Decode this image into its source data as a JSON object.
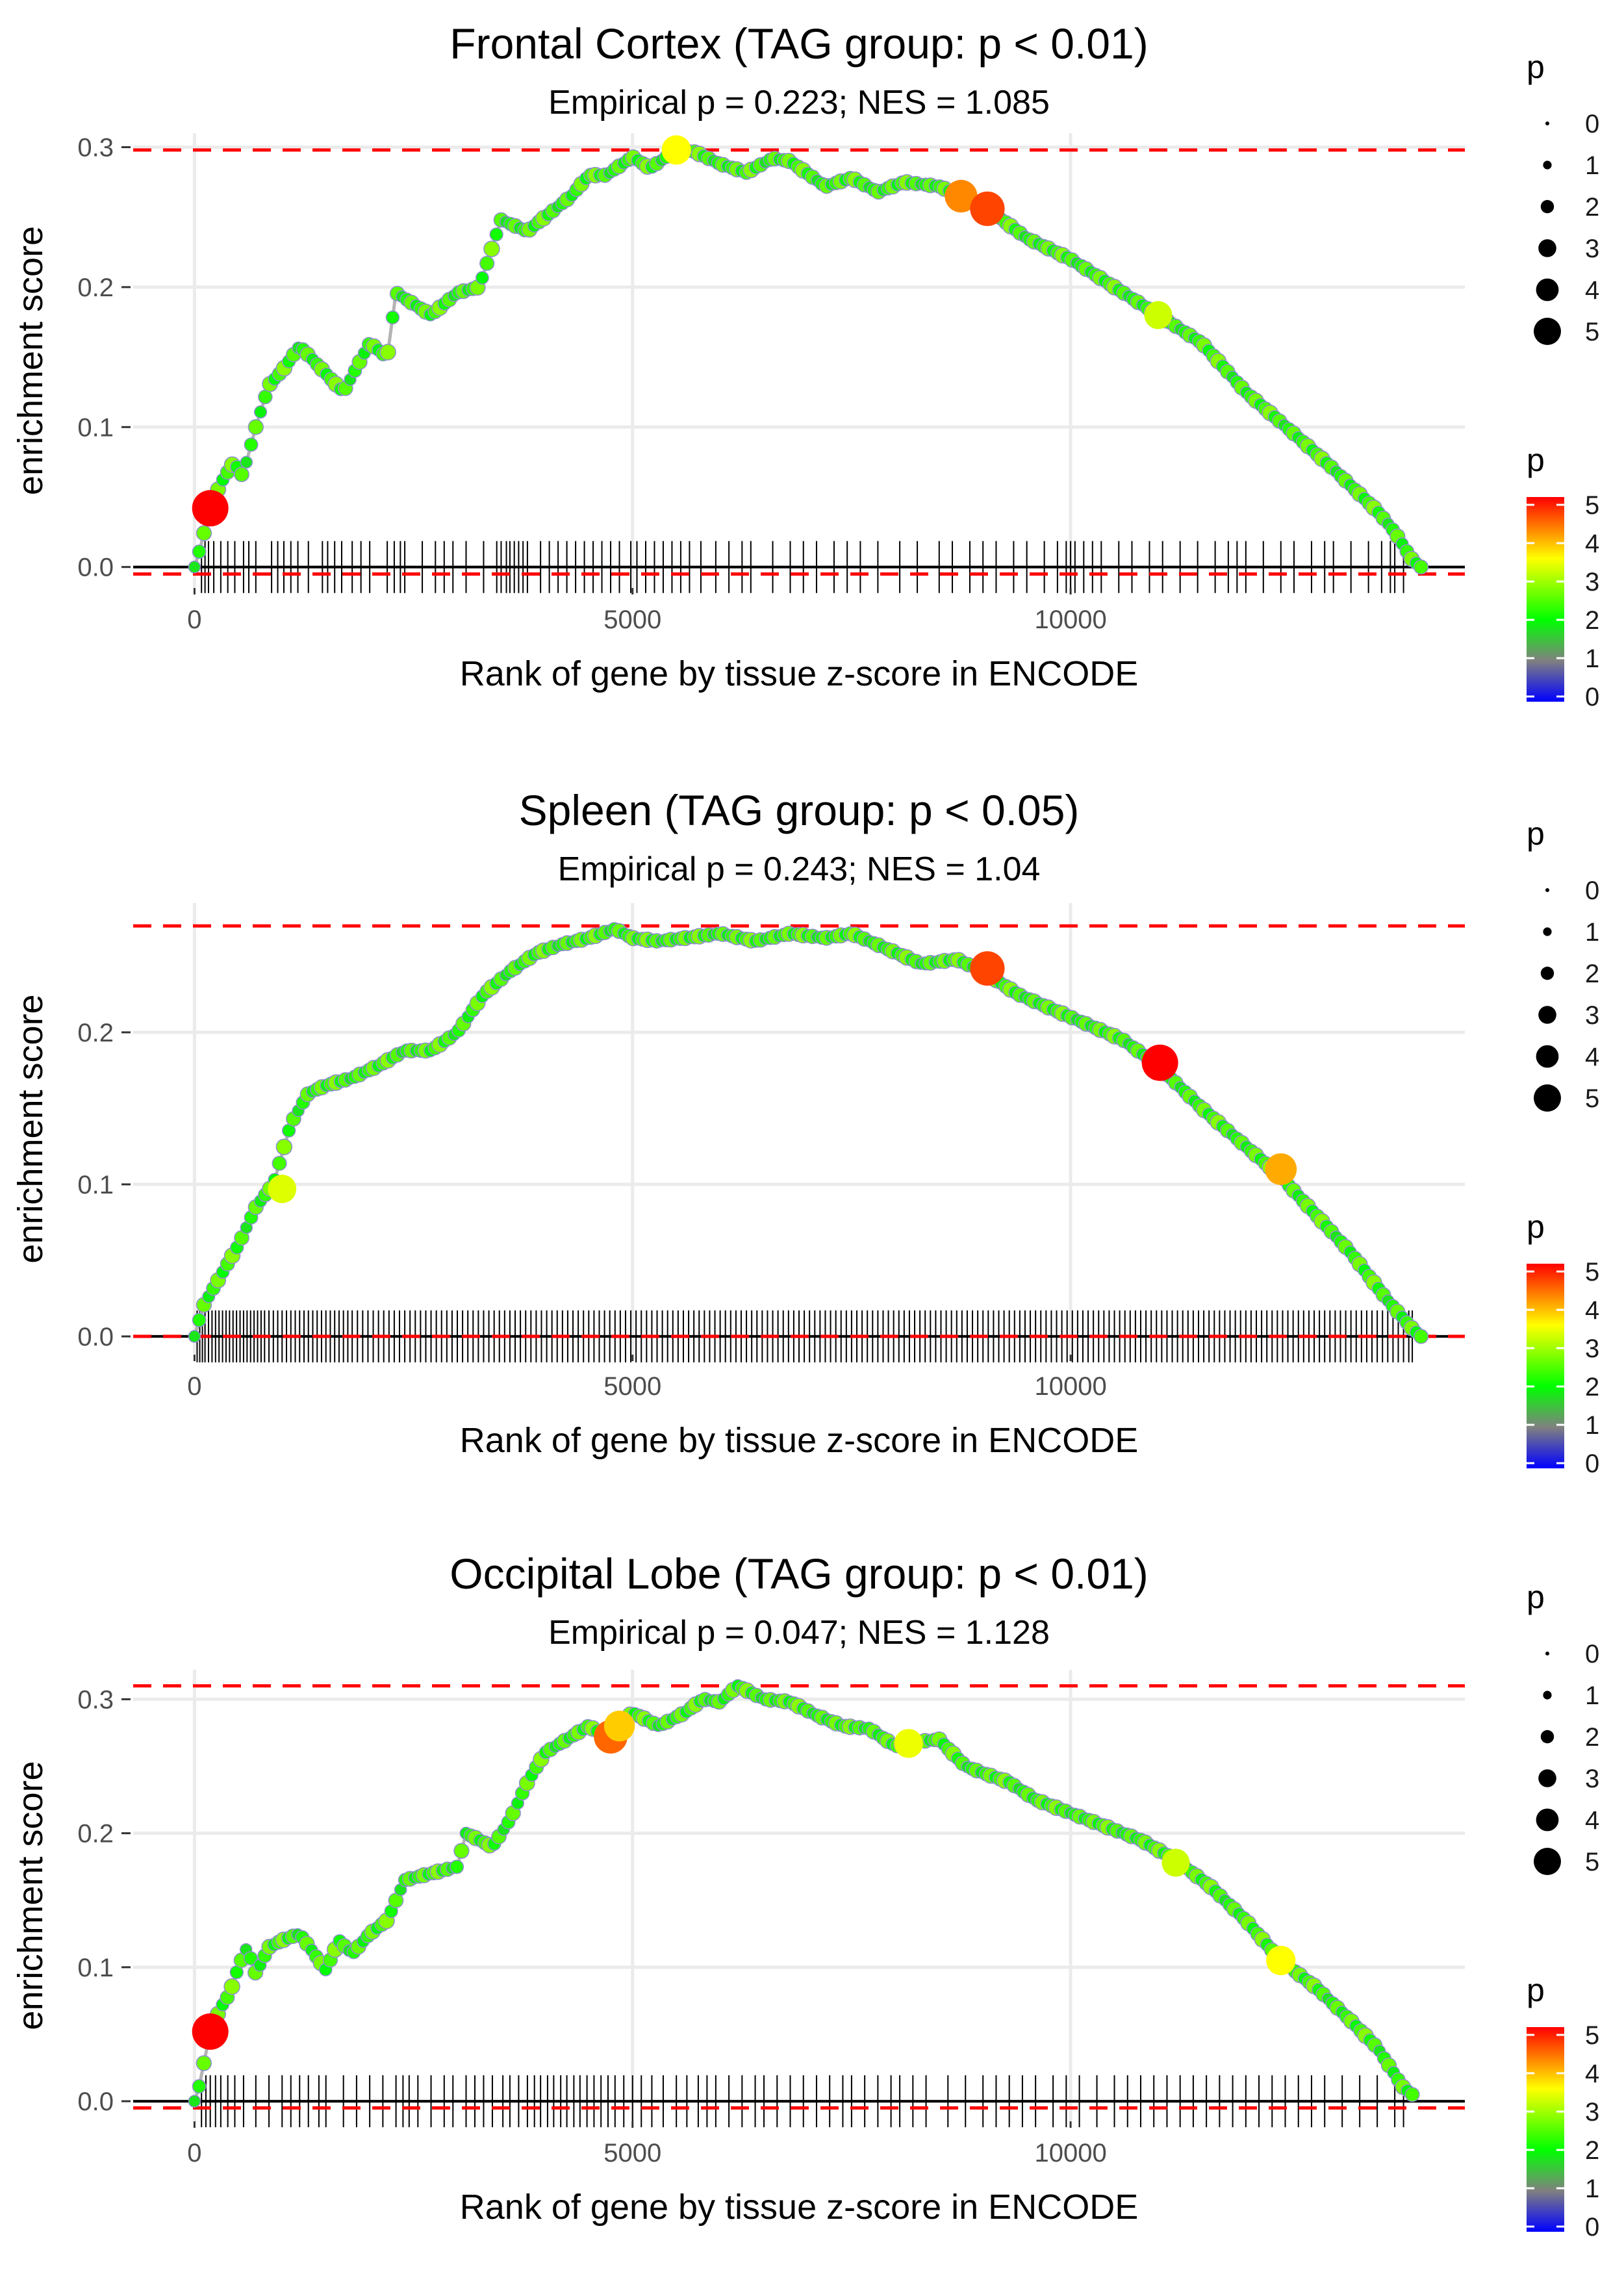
{
  "chart_data": [
    {
      "type": "line",
      "title": "Frontal Cortex (TAG group: p < 0.01)",
      "subtitle": "Empirical p = 0.223; NES = 1.085",
      "xlabel": "Rank of gene by tissue z-score in ENCODE",
      "ylabel": "enrichment score",
      "xlim": [
        -700,
        14500
      ],
      "ylim": [
        -0.015,
        0.31
      ],
      "xticks": [
        0,
        5000,
        10000
      ],
      "xtick_labels": [
        "0",
        "5000",
        "10000"
      ],
      "yticks": [
        0,
        0.1,
        0.2,
        0.3
      ],
      "ytick_labels": [
        "0.0",
        "0.1",
        "0.2",
        "0.3"
      ],
      "max_es": 0.298,
      "min_es": -0.005,
      "curve": [
        [
          0,
          0
        ],
        [
          50,
          0.01
        ],
        [
          180,
          0.042
        ],
        [
          300,
          0.06
        ],
        [
          450,
          0.075
        ],
        [
          550,
          0.065
        ],
        [
          700,
          0.1
        ],
        [
          850,
          0.13
        ],
        [
          1000,
          0.14
        ],
        [
          1200,
          0.158
        ],
        [
          1700,
          0.125
        ],
        [
          2000,
          0.16
        ],
        [
          2200,
          0.15
        ],
        [
          2300,
          0.196
        ],
        [
          2700,
          0.18
        ],
        [
          3000,
          0.196
        ],
        [
          3250,
          0.2
        ],
        [
          3500,
          0.248
        ],
        [
          3800,
          0.24
        ],
        [
          4000,
          0.25
        ],
        [
          4300,
          0.265
        ],
        [
          4500,
          0.28
        ],
        [
          4700,
          0.28
        ],
        [
          5000,
          0.293
        ],
        [
          5200,
          0.285
        ],
        [
          5500,
          0.298
        ],
        [
          5700,
          0.297
        ],
        [
          6000,
          0.288
        ],
        [
          6300,
          0.282
        ],
        [
          6600,
          0.292
        ],
        [
          6800,
          0.29
        ],
        [
          7200,
          0.272
        ],
        [
          7500,
          0.278
        ],
        [
          7800,
          0.268
        ],
        [
          8100,
          0.275
        ],
        [
          8500,
          0.272
        ],
        [
          8750,
          0.265
        ],
        [
          9050,
          0.256
        ],
        [
          9500,
          0.235
        ],
        [
          9800,
          0.226
        ],
        [
          10000,
          0.22
        ],
        [
          10500,
          0.2
        ],
        [
          11000,
          0.18
        ],
        [
          11500,
          0.16
        ],
        [
          12000,
          0.125
        ],
        [
          12500,
          0.098
        ],
        [
          13000,
          0.07
        ],
        [
          13500,
          0.04
        ],
        [
          13700,
          0.025
        ],
        [
          13900,
          0.005
        ],
        [
          14000,
          0
        ]
      ],
      "highlight_points": [
        {
          "x": 180,
          "y": 0.042,
          "p": 5
        },
        {
          "x": 8750,
          "y": 0.265,
          "p": 4.2
        },
        {
          "x": 9050,
          "y": 0.256,
          "p": 4.6
        },
        {
          "x": 5500,
          "y": 0.298,
          "p": 3.5
        },
        {
          "x": 11000,
          "y": 0.18,
          "p": 3.2
        }
      ],
      "gene_ranks": [
        80,
        120,
        160,
        220,
        300,
        380,
        460,
        560,
        620,
        700,
        880,
        950,
        1020,
        1100,
        1180,
        1300,
        1460,
        1520,
        1600,
        1680,
        1800,
        1900,
        2000,
        2200,
        2280,
        2350,
        2400,
        2600,
        2750,
        2850,
        2950,
        3100,
        3300,
        3450,
        3500,
        3560,
        3600,
        3650,
        3700,
        3750,
        3800,
        3950,
        4050,
        4150,
        4250,
        4350,
        4450,
        4550,
        4650,
        4750,
        4850,
        4980,
        5050,
        5150,
        5250,
        5350,
        5450,
        5550,
        5650,
        5780,
        5950,
        6100,
        6250,
        6350,
        6600,
        6800,
        6950,
        7100,
        7300,
        7450,
        7600,
        7800,
        8050,
        8250,
        8500,
        8650,
        8850,
        9000,
        9150,
        9350,
        9500,
        9700,
        9850,
        9950,
        10000,
        10050,
        10150,
        10250,
        10350,
        10550,
        10700,
        10900,
        11050,
        11250,
        11450,
        11650,
        11800,
        11900,
        12000,
        12200,
        12400,
        12550,
        12750,
        12900,
        13000,
        13200,
        13400,
        13550,
        13650,
        13700,
        13800
      ],
      "legend_size_title": "p",
      "legend_size_labels": [
        "0",
        "1",
        "2",
        "3",
        "4",
        "5"
      ],
      "legend_color_title": "p",
      "legend_color_labels": [
        "5",
        "4",
        "3",
        "2",
        "1",
        "0"
      ]
    },
    {
      "type": "line",
      "title": "Spleen (TAG group: p < 0.05)",
      "subtitle": "Empirical p = 0.243; NES = 1.04",
      "xlabel": "Rank of gene by tissue z-score in ENCODE",
      "ylabel": "enrichment score",
      "xlim": [
        -700,
        14500
      ],
      "ylim": [
        -0.012,
        0.285
      ],
      "xticks": [
        0,
        5000,
        10000
      ],
      "xtick_labels": [
        "0",
        "5000",
        "10000"
      ],
      "yticks": [
        0,
        0.1,
        0.2
      ],
      "ytick_labels": [
        "0.0",
        "0.1",
        "0.2"
      ],
      "max_es": 0.27,
      "min_es": 0,
      "curve": [
        [
          0,
          0
        ],
        [
          100,
          0.02
        ],
        [
          300,
          0.04
        ],
        [
          500,
          0.06
        ],
        [
          700,
          0.085
        ],
        [
          900,
          0.1
        ],
        [
          1100,
          0.14
        ],
        [
          1300,
          0.16
        ],
        [
          1500,
          0.165
        ],
        [
          1800,
          0.17
        ],
        [
          2100,
          0.178
        ],
        [
          2400,
          0.188
        ],
        [
          2700,
          0.188
        ],
        [
          3000,
          0.2
        ],
        [
          3300,
          0.225
        ],
        [
          3600,
          0.24
        ],
        [
          3900,
          0.252
        ],
        [
          4200,
          0.258
        ],
        [
          4500,
          0.262
        ],
        [
          4800,
          0.268
        ],
        [
          5000,
          0.262
        ],
        [
          5300,
          0.26
        ],
        [
          5600,
          0.262
        ],
        [
          6000,
          0.265
        ],
        [
          6400,
          0.26
        ],
        [
          6800,
          0.265
        ],
        [
          7200,
          0.262
        ],
        [
          7500,
          0.265
        ],
        [
          7900,
          0.255
        ],
        [
          8300,
          0.245
        ],
        [
          8700,
          0.248
        ],
        [
          9000,
          0.24
        ],
        [
          9400,
          0.225
        ],
        [
          9800,
          0.215
        ],
        [
          10200,
          0.205
        ],
        [
          10600,
          0.195
        ],
        [
          11000,
          0.178
        ],
        [
          11500,
          0.15
        ],
        [
          12000,
          0.125
        ],
        [
          12400,
          0.105
        ],
        [
          12800,
          0.08
        ],
        [
          13200,
          0.055
        ],
        [
          13600,
          0.025
        ],
        [
          13900,
          0.005
        ],
        [
          14000,
          0
        ]
      ],
      "highlight_points": [
        {
          "x": 9050,
          "y": 0.242,
          "p": 4.6
        },
        {
          "x": 11020,
          "y": 0.18,
          "p": 5
        },
        {
          "x": 12400,
          "y": 0.11,
          "p": 4.0
        },
        {
          "x": 1000,
          "y": 0.097,
          "p": 3.3
        }
      ],
      "gene_ranks": [
        30,
        60,
        90,
        120,
        160,
        200,
        240,
        280,
        320,
        360,
        400,
        440,
        480,
        520,
        560,
        600,
        640,
        680,
        720,
        760,
        800,
        850,
        900,
        950,
        1000,
        1050,
        1100,
        1150,
        1200,
        1250,
        1300,
        1350,
        1400,
        1450,
        1500,
        1550,
        1600,
        1650,
        1700,
        1750,
        1800,
        1860,
        1920,
        1980,
        2040,
        2100,
        2160,
        2220,
        2280,
        2340,
        2400,
        2460,
        2520,
        2580,
        2640,
        2700,
        2760,
        2820,
        2880,
        2940,
        3000,
        3060,
        3120,
        3180,
        3240,
        3300,
        3360,
        3420,
        3480,
        3540,
        3600,
        3660,
        3720,
        3780,
        3840,
        3900,
        3960,
        4020,
        4080,
        4140,
        4200,
        4260,
        4320,
        4380,
        4440,
        4500,
        4560,
        4620,
        4680,
        4740,
        4800,
        4860,
        4920,
        4980,
        5040,
        5100,
        5160,
        5220,
        5280,
        5340,
        5400,
        5460,
        5520,
        5580,
        5640,
        5700,
        5760,
        5820,
        5880,
        5940,
        6000,
        6060,
        6120,
        6180,
        6240,
        6300,
        6360,
        6420,
        6480,
        6540,
        6600,
        6660,
        6720,
        6780,
        6840,
        6900,
        6960,
        7020,
        7080,
        7140,
        7200,
        7260,
        7320,
        7380,
        7440,
        7500,
        7560,
        7620,
        7680,
        7740,
        7800,
        7860,
        7920,
        7980,
        8040,
        8100,
        8160,
        8220,
        8280,
        8340,
        8400,
        8460,
        8520,
        8580,
        8640,
        8700,
        8760,
        8820,
        8880,
        8940,
        9000,
        9060,
        9120,
        9180,
        9240,
        9300,
        9360,
        9420,
        9480,
        9540,
        9600,
        9660,
        9720,
        9780,
        9840,
        9900,
        9960,
        10020,
        10080,
        10140,
        10200,
        10260,
        10320,
        10380,
        10440,
        10500,
        10560,
        10620,
        10680,
        10740,
        10800,
        10860,
        10920,
        10980,
        11040,
        11100,
        11160,
        11220,
        11280,
        11340,
        11400,
        11460,
        11520,
        11580,
        11640,
        11700,
        11760,
        11820,
        11880,
        11940,
        12000,
        12060,
        12120,
        12180,
        12240,
        12300,
        12360,
        12420,
        12480,
        12540,
        12600,
        12660,
        12720,
        12780,
        12840,
        12900,
        12960,
        13020,
        13080,
        13140,
        13200,
        13260,
        13320,
        13380,
        13440,
        13500,
        13560,
        13620,
        13680,
        13740,
        13800,
        13860,
        13900
      ],
      "legend_size_title": "p",
      "legend_size_labels": [
        "0",
        "1",
        "2",
        "3",
        "4",
        "5"
      ],
      "legend_color_title": "p",
      "legend_color_labels": [
        "5",
        "4",
        "3",
        "2",
        "1",
        "0"
      ]
    },
    {
      "type": "line",
      "title": "Occipital Lobe (TAG group: p < 0.01)",
      "subtitle": "Empirical p = 0.047; NES = 1.128",
      "xlabel": "Rank of gene by tissue z-score in ENCODE",
      "ylabel": "enrichment score",
      "xlim": [
        -700,
        14500
      ],
      "ylim": [
        -0.015,
        0.322
      ],
      "xticks": [
        0,
        5000,
        10000
      ],
      "xtick_labels": [
        "0",
        "5000",
        "10000"
      ],
      "yticks": [
        0,
        0.1,
        0.2,
        0.3
      ],
      "ytick_labels": [
        "0.0",
        "0.1",
        "0.2",
        "0.3"
      ],
      "max_es": 0.31,
      "min_es": -0.005,
      "curve": [
        [
          0,
          0
        ],
        [
          50,
          0.01
        ],
        [
          180,
          0.052
        ],
        [
          300,
          0.07
        ],
        [
          400,
          0.08
        ],
        [
          500,
          0.1
        ],
        [
          600,
          0.115
        ],
        [
          700,
          0.095
        ],
        [
          850,
          0.115
        ],
        [
          1000,
          0.12
        ],
        [
          1200,
          0.125
        ],
        [
          1500,
          0.098
        ],
        [
          1650,
          0.12
        ],
        [
          1800,
          0.11
        ],
        [
          2000,
          0.125
        ],
        [
          2200,
          0.135
        ],
        [
          2400,
          0.165
        ],
        [
          2700,
          0.17
        ],
        [
          3000,
          0.175
        ],
        [
          3100,
          0.2
        ],
        [
          3400,
          0.19
        ],
        [
          3600,
          0.21
        ],
        [
          3800,
          0.238
        ],
        [
          4000,
          0.26
        ],
        [
          4200,
          0.268
        ],
        [
          4500,
          0.28
        ],
        [
          4700,
          0.272
        ],
        [
          4800,
          0.28
        ],
        [
          5000,
          0.29
        ],
        [
          5300,
          0.28
        ],
        [
          5600,
          0.29
        ],
        [
          5800,
          0.3
        ],
        [
          6000,
          0.298
        ],
        [
          6200,
          0.31
        ],
        [
          6500,
          0.3
        ],
        [
          6800,
          0.298
        ],
        [
          7100,
          0.288
        ],
        [
          7400,
          0.28
        ],
        [
          7700,
          0.278
        ],
        [
          8000,
          0.265
        ],
        [
          8200,
          0.268
        ],
        [
          8500,
          0.27
        ],
        [
          8800,
          0.25
        ],
        [
          9000,
          0.245
        ],
        [
          9300,
          0.238
        ],
        [
          9600,
          0.225
        ],
        [
          10000,
          0.215
        ],
        [
          10400,
          0.205
        ],
        [
          10800,
          0.195
        ],
        [
          11200,
          0.18
        ],
        [
          11600,
          0.16
        ],
        [
          12000,
          0.135
        ],
        [
          12400,
          0.105
        ],
        [
          12800,
          0.085
        ],
        [
          13200,
          0.06
        ],
        [
          13500,
          0.04
        ],
        [
          13800,
          0.01
        ],
        [
          13900,
          0.005
        ]
      ],
      "highlight_points": [
        {
          "x": 180,
          "y": 0.052,
          "p": 5
        },
        {
          "x": 4750,
          "y": 0.272,
          "p": 4.4
        },
        {
          "x": 4850,
          "y": 0.28,
          "p": 3.8
        },
        {
          "x": 8150,
          "y": 0.267,
          "p": 3.4
        },
        {
          "x": 12400,
          "y": 0.105,
          "p": 3.5
        },
        {
          "x": 11200,
          "y": 0.178,
          "p": 3.2
        }
      ],
      "gene_ranks": [
        80,
        130,
        180,
        240,
        300,
        380,
        460,
        560,
        700,
        850,
        1000,
        1100,
        1200,
        1300,
        1420,
        1500,
        1700,
        1850,
        2000,
        2150,
        2300,
        2380,
        2450,
        2550,
        2700,
        2850,
        2950,
        3100,
        3200,
        3300,
        3400,
        3520,
        3600,
        3700,
        3800,
        3880,
        3950,
        4030,
        4100,
        4180,
        4250,
        4330,
        4400,
        4480,
        4560,
        4640,
        4720,
        4800,
        4900,
        5000,
        5100,
        5220,
        5350,
        5500,
        5620,
        5750,
        5850,
        5950,
        6100,
        6250,
        6400,
        6500,
        6650,
        6800,
        6950,
        7100,
        7250,
        7400,
        7500,
        7650,
        7800,
        7950,
        8050,
        8200,
        8350,
        8600,
        8800,
        9000,
        9150,
        9300,
        9450,
        9600,
        9800,
        9950,
        10100,
        10300,
        10500,
        10650,
        10800,
        10950,
        11100,
        11250,
        11400,
        11550,
        11700,
        11850,
        12000,
        12150,
        12300,
        12450,
        12600,
        12750,
        12900,
        13100,
        13300,
        13500,
        13700,
        13800
      ],
      "legend_size_title": "p",
      "legend_size_labels": [
        "0",
        "1",
        "2",
        "3",
        "4",
        "5"
      ],
      "legend_color_title": "p",
      "legend_color_labels": [
        "5",
        "4",
        "3",
        "2",
        "1",
        "0"
      ]
    }
  ]
}
